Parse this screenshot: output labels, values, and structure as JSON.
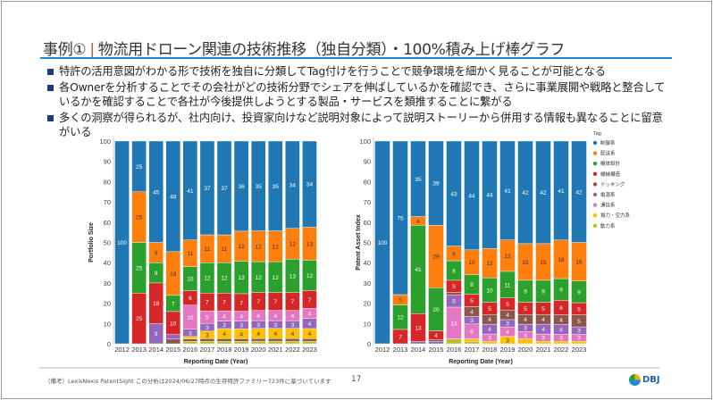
{
  "header": {
    "title_part1": "事例①",
    "title_part2": "物流用ドローン関連の技術推移（独自分類）・100%積み上げ棒グラフ"
  },
  "bullets": [
    "特許の活用意図がわかる形で技術を独自に分類してTag付けを行うことで競争環境を細かく見ることが可能となる",
    "各Ownerを分析することでその会社がどの技術分野でシェアを伸ばしているかを確認でき、さらに事業展開や戦略と整合しているかを確認することで各社が今後提供しようとする製品・サービスを類推することに繋がる",
    "多くの洞察が得られるが、社内向け、投資家向けなど説明対象によって説明ストーリーから併用する情報も異なることに留意がいる"
  ],
  "footer": {
    "note": "（備考）LexisNexis PatentSight この分析は2024/06/27時点の生存特許ファミリー723件に基づいています",
    "page": "17",
    "logo": "DBJ"
  },
  "legend": {
    "title": "Tag",
    "items": [
      {
        "name": "制御系",
        "color": "#1f77b4"
      },
      {
        "name": "配送系",
        "color": "#ff7f0e"
      },
      {
        "name": "機体設計",
        "color": "#2ca02c"
      },
      {
        "name": "機械構造",
        "color": "#d62728"
      },
      {
        "name": "ドッキング",
        "color": "#8c564b"
      },
      {
        "name": "電源系",
        "color": "#9467bd"
      },
      {
        "name": "通信系",
        "color": "#e377c2"
      },
      {
        "name": "揚力・空力系",
        "color": "#ffc000"
      },
      {
        "name": "動力系",
        "color": "#bcbd22"
      }
    ]
  },
  "chart_data": [
    {
      "type": "bar",
      "stacked": "100%",
      "xlabel": "Reporting Date (Year)",
      "ylabel": "Portfolio Size",
      "ylim": [
        0,
        100
      ],
      "yticks": [
        0,
        10,
        20,
        30,
        40,
        50,
        60,
        70,
        80,
        90,
        100
      ],
      "categories": [
        "2012",
        "2013",
        "2014",
        "2015",
        "2016",
        "2017",
        "2018",
        "2019",
        "2020",
        "2021",
        "2022",
        "2023"
      ],
      "stack_order": [
        "動力系",
        "ドッキング",
        "揚力・空力系",
        "電源系",
        "通信系",
        "機械構造",
        "機体設計",
        "配送系",
        "制御系"
      ],
      "series": [
        {
          "name": "制御系",
          "values": [
            100,
            25,
            45,
            48,
            41,
            37,
            37,
            36,
            35,
            35,
            34,
            34
          ]
        },
        {
          "name": "配送系",
          "values": [
            0,
            25,
            9,
            19,
            11,
            11,
            11,
            12,
            12,
            12,
            12,
            13
          ]
        },
        {
          "name": "機体設計",
          "values": [
            0,
            25,
            9,
            7,
            10,
            12,
            12,
            13,
            12,
            12,
            13,
            12
          ]
        },
        {
          "name": "機械構造",
          "values": [
            0,
            25,
            18,
            10,
            6,
            7,
            7,
            7,
            7,
            7,
            7,
            7
          ]
        },
        {
          "name": "ドッキング",
          "values": [
            0,
            0,
            0,
            2,
            1,
            1,
            1,
            1,
            1,
            1,
            1,
            1
          ]
        },
        {
          "name": "電源系",
          "values": [
            0,
            0,
            9,
            2,
            3,
            3,
            3,
            3,
            3,
            3,
            3,
            4
          ]
        },
        {
          "name": "通信系",
          "values": [
            0,
            0,
            0,
            0,
            10,
            5,
            4,
            4,
            4,
            4,
            4,
            4
          ]
        },
        {
          "name": "揚力・空力系",
          "values": [
            0,
            0,
            0,
            0,
            1,
            3,
            4,
            4,
            4,
            4,
            4,
            4
          ]
        },
        {
          "name": "動力系",
          "values": [
            0,
            0,
            0,
            0,
            1,
            1,
            1,
            1,
            1,
            1,
            1,
            1
          ]
        }
      ]
    },
    {
      "type": "bar",
      "stacked": "100%",
      "xlabel": "Reporting Date (Year)",
      "ylabel": "Patent Asset Index",
      "ylim": [
        0,
        100
      ],
      "yticks": [
        0,
        10,
        20,
        30,
        40,
        50,
        60,
        70,
        80,
        90,
        100
      ],
      "categories": [
        "2012",
        "2013",
        "2014",
        "2015",
        "2016",
        "2017",
        "2018",
        "2019",
        "2020",
        "2021",
        "2022",
        "2023"
      ],
      "stack_order": [
        "動力系",
        "揚力・空力系",
        "通信系",
        "電源系",
        "ドッキング",
        "機械構造",
        "機体設計",
        "配送系",
        "制御系"
      ],
      "series": [
        {
          "name": "制御系",
          "values": [
            100,
            75,
            35,
            39,
            43,
            44,
            44,
            41,
            42,
            42,
            41,
            42
          ]
        },
        {
          "name": "配送系",
          "values": [
            0,
            5,
            4,
            29,
            6,
            10,
            12,
            13,
            15,
            15,
            16,
            16
          ]
        },
        {
          "name": "機体設計",
          "values": [
            0,
            12,
            41,
            20,
            8,
            8,
            10,
            11,
            9,
            9,
            9,
            9
          ]
        },
        {
          "name": "機械構造",
          "values": [
            0,
            7,
            13,
            4,
            5,
            5,
            5,
            5,
            5,
            5,
            6,
            5
          ]
        },
        {
          "name": "ドッキング",
          "values": [
            0,
            0,
            0,
            1,
            1,
            4,
            4,
            4,
            4,
            4,
            4,
            5
          ]
        },
        {
          "name": "電源系",
          "values": [
            0,
            0,
            1,
            1,
            5,
            3,
            4,
            3,
            3,
            4,
            4,
            3
          ]
        },
        {
          "name": "通信系",
          "values": [
            0,
            0,
            0,
            0,
            13,
            6,
            3,
            4,
            3,
            3,
            3,
            3
          ]
        },
        {
          "name": "揚力・空力系",
          "values": [
            0,
            0,
            0,
            0,
            0,
            1,
            1,
            3,
            2,
            1,
            1,
            1
          ]
        },
        {
          "name": "動力系",
          "values": [
            0,
            0,
            0,
            0,
            2,
            1,
            0,
            0,
            0,
            0,
            0,
            0
          ]
        }
      ]
    }
  ]
}
